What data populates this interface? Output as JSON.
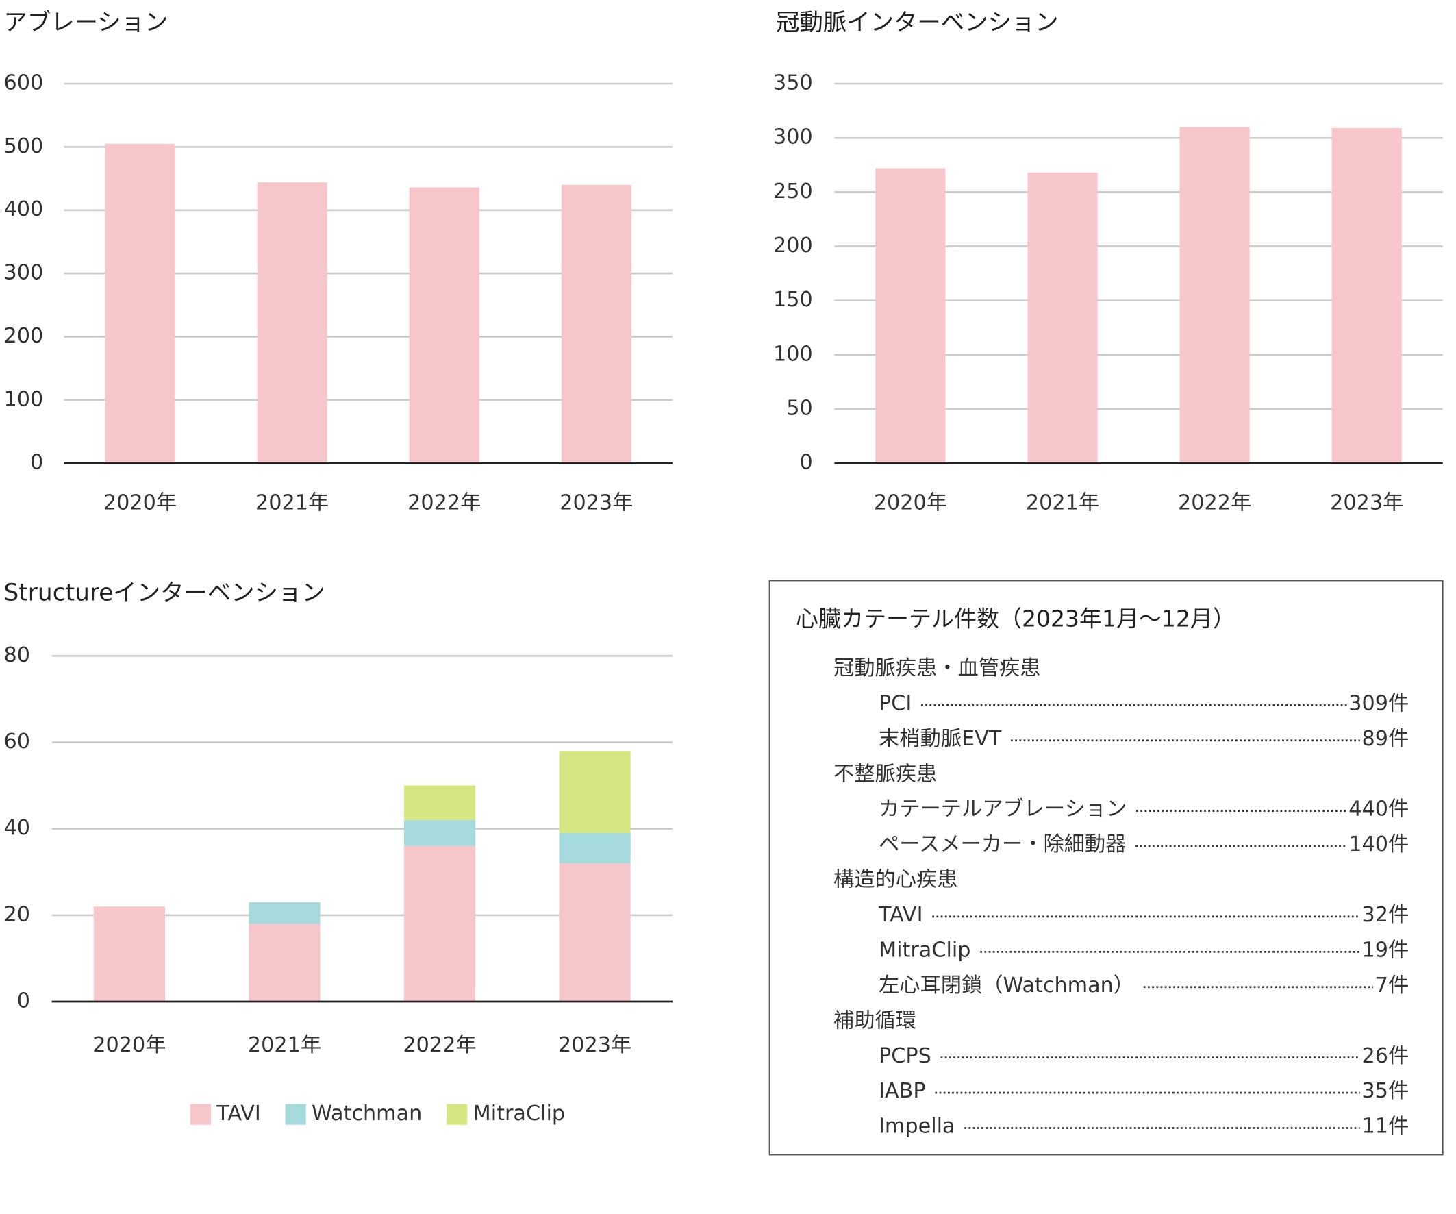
{
  "chart_data": [
    {
      "type": "bar",
      "title": "アブレーション",
      "categories": [
        "2020年",
        "2021年",
        "2022年",
        "2023年"
      ],
      "values": [
        505,
        444,
        436,
        440
      ],
      "color": "#f7c6cb",
      "ylim": [
        0,
        600
      ],
      "yticks": [
        0,
        100,
        200,
        300,
        400,
        500,
        600
      ],
      "grid": true
    },
    {
      "type": "bar",
      "title": "冠動脈インターベンション",
      "categories": [
        "2020年",
        "2021年",
        "2022年",
        "2023年"
      ],
      "values": [
        272,
        268,
        310,
        309
      ],
      "color": "#f7c6cb",
      "ylim": [
        0,
        350
      ],
      "yticks": [
        0,
        50,
        100,
        150,
        200,
        250,
        300,
        350
      ],
      "grid": true
    },
    {
      "type": "stacked_bar",
      "title": "Structureインターベンション",
      "categories": [
        "2020年",
        "2021年",
        "2022年",
        "2023年"
      ],
      "series": [
        {
          "name": "TAVI",
          "color": "#f7c6cb",
          "values": [
            22,
            18,
            36,
            32
          ]
        },
        {
          "name": "Watchman",
          "color": "#a6dadd",
          "values": [
            0,
            5,
            6,
            7
          ]
        },
        {
          "name": "MitraClip",
          "color": "#d6e682",
          "values": [
            0,
            0,
            8,
            19
          ]
        }
      ],
      "ylim": [
        0,
        80
      ],
      "yticks": [
        0,
        20,
        40,
        60,
        80
      ],
      "grid": true,
      "legend": "bottom"
    }
  ],
  "summary": {
    "title": "心臓カテーテル件数（2023年1月〜12月）",
    "sections": [
      {
        "heading": "冠動脈疾患・血管疾患",
        "items": [
          {
            "name": "PCI",
            "value": "309件"
          },
          {
            "name": "末梢動脈EVT",
            "value": "89件"
          }
        ]
      },
      {
        "heading": "不整脈疾患",
        "items": [
          {
            "name": "カテーテルアブレーション",
            "value": "440件"
          },
          {
            "name": "ペースメーカー・除細動器",
            "value": "140件"
          }
        ]
      },
      {
        "heading": "構造的心疾患",
        "items": [
          {
            "name": "TAVI",
            "value": "32件"
          },
          {
            "name": "MitraClip",
            "value": "19件"
          },
          {
            "name": "左心耳閉鎖（Watchman）",
            "value": "7件"
          }
        ]
      },
      {
        "heading": "補助循環",
        "items": [
          {
            "name": "PCPS",
            "value": "26件"
          },
          {
            "name": "IABP",
            "value": "35件"
          },
          {
            "name": "Impella",
            "value": "11件"
          }
        ]
      }
    ]
  }
}
